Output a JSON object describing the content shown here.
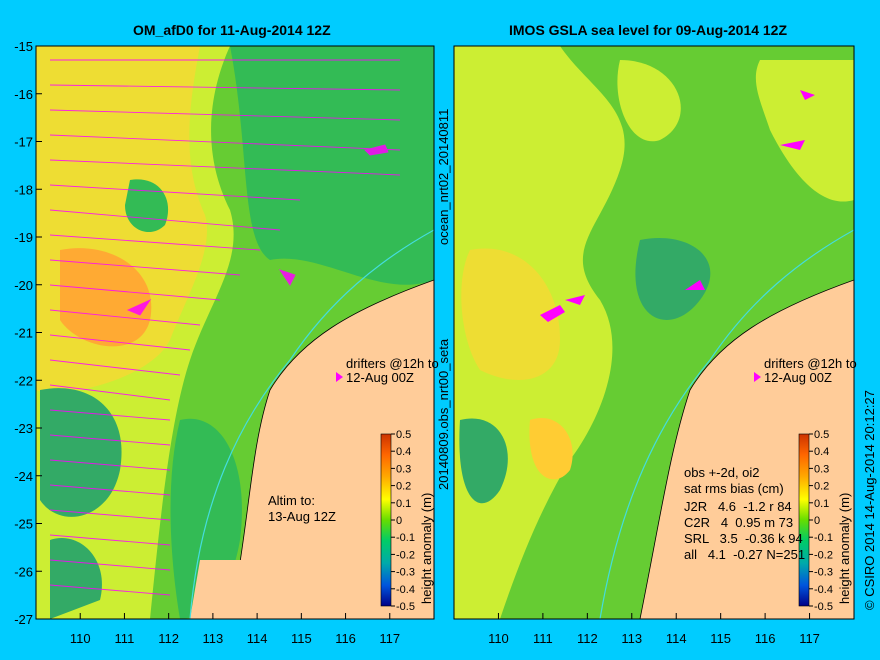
{
  "left_panel": {
    "title": "OM_afD0 for 11-Aug-2014 12Z",
    "drifters_note": [
      "drifters @12h to",
      "12-Aug 00Z"
    ],
    "altim_note": [
      "Altim to:",
      "13-Aug 12Z"
    ]
  },
  "right_panel": {
    "title": "IMOS GSLA sea level  for 09-Aug-2014 12Z",
    "drifters_note": [
      "drifters @12h to",
      "12-Aug 00Z"
    ],
    "stats_header": [
      "obs +-2d, oi2",
      "sat rms bias (cm)"
    ],
    "stats_rows": [
      "J2R   4.6  -1.2 r 84",
      "C2R   4  0.95 m 73",
      "SRL   3.5  -0.36 k 94",
      "all   4.1  -0.27 N=251"
    ]
  },
  "axes": {
    "lat_ticks": [
      "-15",
      "-16",
      "-17",
      "-18",
      "-19",
      "-20",
      "-21",
      "-22",
      "-23",
      "-24",
      "-25",
      "-26",
      "-27"
    ],
    "lon_ticks": [
      "110",
      "111",
      "112",
      "113",
      "114",
      "115",
      "116",
      "117"
    ],
    "lat_range": [
      -27,
      -15
    ],
    "lon_range": [
      109,
      118
    ]
  },
  "colorbar": {
    "label": "height anomaly (m)",
    "ticks": [
      "0.5",
      "0.4",
      "0.3",
      "0.2",
      "0.1",
      "0",
      "-0.1",
      "-0.2",
      "-0.3",
      "-0.4",
      "-0.5"
    ]
  },
  "side_text": {
    "between_top": "ocean_nrt02_20140811",
    "between_bottom": "20140809.obs_nrt00_seta",
    "right_edge": "© CSIRO 2014  14-Aug-2014 20:12:27"
  },
  "colors": {
    "background": "#00ccff",
    "land": "#ffcc99",
    "drifter": "#ff00ff"
  }
}
